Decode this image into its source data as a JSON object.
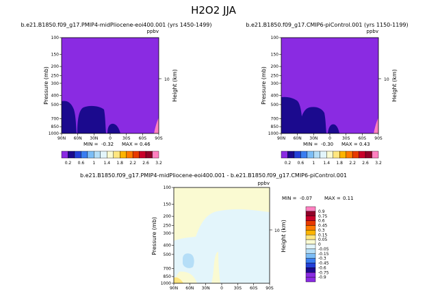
{
  "chart_data": [
    {
      "type": "heatmap",
      "title": "b.e21.B1850.f09_g17.PMIP4-midPliocene-eoi400.001  (yrs 1450-1499)",
      "units": "ppbv",
      "xlabel": "",
      "ylabel": "Pressure (mb)",
      "y2label": "Height (km)",
      "x_ticks": [
        "90N",
        "60N",
        "30N",
        "0",
        "30S",
        "60S",
        "90S"
      ],
      "y_ticks": [
        "100",
        "150",
        "200",
        "250",
        "300",
        "400",
        "500",
        "700",
        "850",
        "1000"
      ],
      "y2_ticks": [
        "10"
      ],
      "min_label": "MIN =",
      "min_value": "-0.32",
      "max_label": "MAX =",
      "max_value": "0.46",
      "colorbar_labels": [
        "0.2",
        "0.6",
        "1",
        "1.4",
        "1.8",
        "2.2",
        "2.6",
        "3.2"
      ]
    },
    {
      "type": "heatmap",
      "title": "b.e21.B1850.f09_g17.CMIP6-piControl.001  (yrs 1150-1199)",
      "units": "ppbv",
      "xlabel": "",
      "ylabel": "Pressure (mb)",
      "y2label": "Height (km)",
      "x_ticks": [
        "90N",
        "60N",
        "30N",
        "0",
        "30S",
        "60S",
        "90S"
      ],
      "y_ticks": [
        "100",
        "150",
        "200",
        "250",
        "300",
        "400",
        "500",
        "700",
        "850",
        "1000"
      ],
      "y2_ticks": [
        "10"
      ],
      "min_label": "MIN =",
      "min_value": "-0.30",
      "max_label": "MAX =",
      "max_value": "0.43",
      "colorbar_labels": [
        "0.2",
        "0.6",
        "1",
        "1.4",
        "1.8",
        "2.2",
        "2.6",
        "3.2"
      ]
    },
    {
      "type": "heatmap",
      "title": "b.e21.B1850.f09_g17.PMIP4-midPliocene-eoi400.001  -  b.e21.B1850.f09_g17.CMIP6-piControl.001",
      "units": "ppbv",
      "xlabel": "",
      "ylabel": "Pressure (mb)",
      "y2label": "Height (km)",
      "x_ticks": [
        "90N",
        "60N",
        "30N",
        "0",
        "30S",
        "60S",
        "90S"
      ],
      "y_ticks": [
        "100",
        "150",
        "200",
        "250",
        "300",
        "400",
        "500",
        "700",
        "850",
        "1000"
      ],
      "y2_ticks": [
        "10"
      ],
      "min_label": "MIN =",
      "min_value": "-0.07",
      "max_label": "MAX =",
      "max_value": "0.11",
      "colorbar_labels": [
        "0.9",
        "0.75",
        "0.6",
        "0.45",
        "0.3",
        "0.15",
        "0.05",
        "0",
        "-0.05",
        "-0.15",
        "-0.3",
        "-0.45",
        "-0.6",
        "-0.75",
        "-0.9"
      ]
    }
  ],
  "page": {
    "main_title": "H2O2 JJA"
  },
  "colors": {
    "abs_scale": [
      "#8a2be2",
      "#1b0a8e",
      "#2340d8",
      "#3a7df0",
      "#7cbdf6",
      "#b5def7",
      "#e3f5fb",
      "#fafad2",
      "#ffe680",
      "#ffb400",
      "#ff7a00",
      "#e83a00",
      "#c8002a",
      "#900028",
      "#ff80c0"
    ],
    "diff_scale": [
      "#ff80c0",
      "#900028",
      "#c8002a",
      "#e83a00",
      "#ff7a00",
      "#ffb400",
      "#ffe680",
      "#fafad2",
      "#e3f5fb",
      "#b5def7",
      "#7cbdf6",
      "#3a7df0",
      "#2340d8",
      "#1b0a8e",
      "#8a2be2",
      "#8a2be2"
    ],
    "panel_fill": "#8a2be2",
    "low_fill": "#1b0a8e",
    "diff_fill": "#fafad2",
    "diff_neg": "#e3f5fb",
    "diff_neg2": "#b5def7"
  }
}
